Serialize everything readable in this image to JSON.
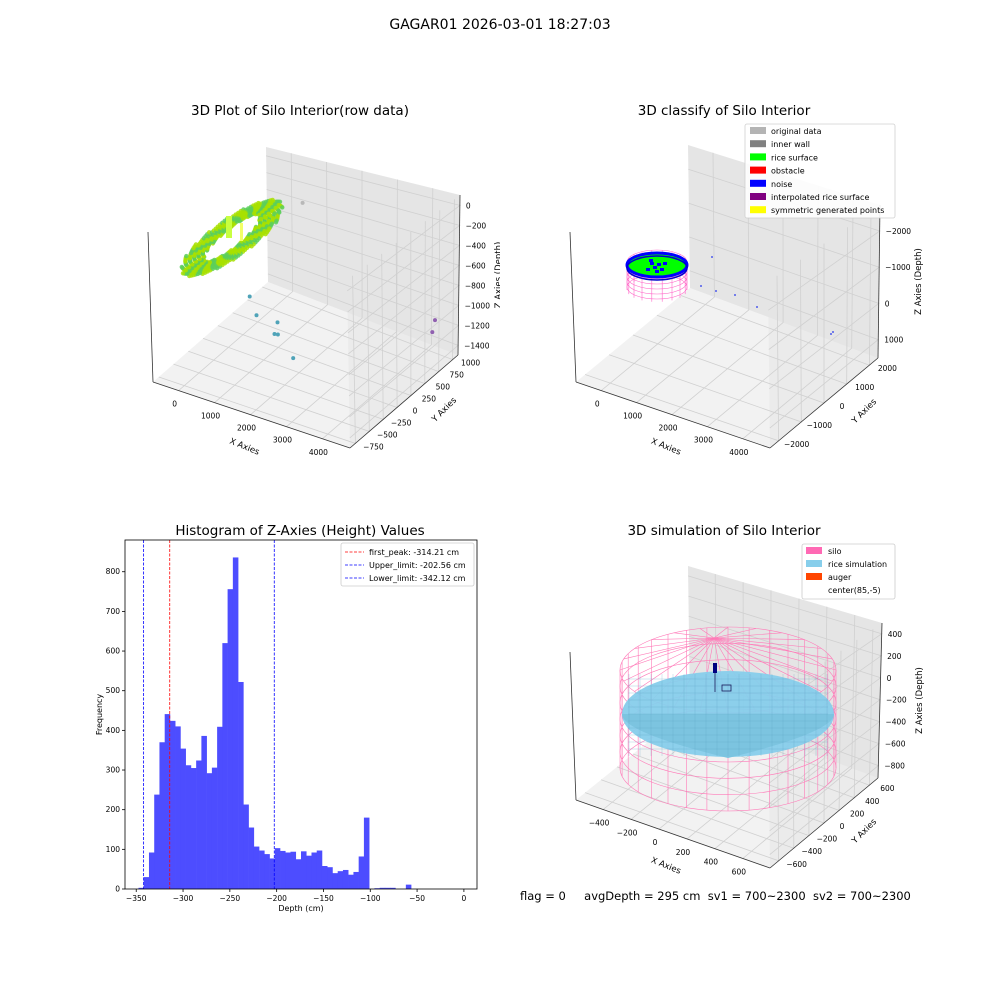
{
  "figure_title": "GAGAR01 2026-03-01 18:27:03",
  "footer": {
    "flag": "flag = 0",
    "avg_depth": "avgDepth = 295 cm",
    "sv1": "sv1 = 700~2300",
    "sv2": "sv2 = 700~2300"
  },
  "chart_data": [
    {
      "id": "raw",
      "type": "scatter",
      "title": "3D Plot of Silo Interior(row data)",
      "xlabel": "X Axies",
      "ylabel": "Y Axies",
      "zlabel": "Z Axies (Depth)",
      "x_ticks": [
        "0",
        "1000",
        "2000",
        "3000",
        "4000"
      ],
      "y_ticks": [
        "−750",
        "−500",
        "−250",
        "0",
        "250",
        "500",
        "750",
        "1000"
      ],
      "z_ticks": [
        "0",
        "−200",
        "−400",
        "−600",
        "−800",
        "−1000",
        "−1200",
        "−1400"
      ],
      "xlim": [
        -400,
        4300
      ],
      "ylim": [
        -800,
        1100
      ],
      "zlim": [
        -1500,
        100
      ],
      "colors": {
        "surface_a": "#a8e000",
        "surface_b": "#5ccf5a",
        "stray": "#4fa3b8",
        "far": "#9060b0"
      },
      "outliers": [
        {
          "x": 1400,
          "y": 500,
          "z": -50
        },
        {
          "x": 1100,
          "y": -200,
          "z": -700
        },
        {
          "x": 1400,
          "y": -300,
          "z": -800
        },
        {
          "x": 1900,
          "y": -300,
          "z": -800
        },
        {
          "x": 1850,
          "y": -320,
          "z": -920
        },
        {
          "x": 1900,
          "y": -300,
          "z": -930
        },
        {
          "x": 2400,
          "y": -400,
          "z": -1050
        },
        {
          "x": 3900,
          "y": 900,
          "z": -1150
        },
        {
          "x": 3900,
          "y": 850,
          "z": -1250
        }
      ]
    },
    {
      "id": "classify",
      "type": "scatter",
      "title": "3D classify of Silo Interior",
      "xlabel": "X Axies",
      "ylabel": "Y Axies",
      "zlabel": "Z Axies (Depth)",
      "x_ticks": [
        "0",
        "1000",
        "2000",
        "3000",
        "4000"
      ],
      "y_ticks": [
        "−2000",
        "−1000",
        "0",
        "1000",
        "2000"
      ],
      "z_ticks": [
        "1000",
        "0",
        "−1000",
        "−2000"
      ],
      "legend_position": "upper right",
      "legend": [
        {
          "label": "original data",
          "color": "#b4b4b4"
        },
        {
          "label": "inner wall",
          "color": "#808080"
        },
        {
          "label": "rice surface",
          "color": "#00ff00"
        },
        {
          "label": "obstacle",
          "color": "#ff0000"
        },
        {
          "label": "noise",
          "color": "#0000ff"
        },
        {
          "label": "interpolated rice surface",
          "color": "#800080"
        },
        {
          "label": "symmetric generated points",
          "color": "#ffff00"
        }
      ]
    },
    {
      "id": "histogram",
      "type": "bar",
      "title": "Histogram of Z-Axies (Height) Values",
      "xlabel": "Depth (cm)",
      "ylabel": "Frequency",
      "xlim": [
        -362,
        14
      ],
      "ylim": [
        0,
        880
      ],
      "x_ticks": [
        -350,
        -300,
        -250,
        -200,
        -150,
        -100,
        -50,
        0
      ],
      "y_ticks": [
        0,
        100,
        200,
        300,
        400,
        500,
        600,
        700,
        800
      ],
      "bar_color": "#4d4dff",
      "bin_width": 5.6,
      "bin_start": -347.6,
      "counts": [
        3,
        30,
        92,
        238,
        370,
        441,
        424,
        410,
        354,
        312,
        305,
        324,
        386,
        292,
        306,
        409,
        620,
        756,
        836,
        522,
        213,
        155,
        107,
        97,
        88,
        77,
        103,
        96,
        92,
        94,
        75,
        95,
        84,
        92,
        97,
        58,
        55,
        40,
        45,
        48,
        36,
        43,
        82,
        180,
        0,
        2,
        3,
        3,
        3,
        0,
        0,
        11
      ],
      "lines": [
        {
          "name": "first_peak: -314.21 cm",
          "value": -314.21,
          "color": "#ff0000"
        },
        {
          "name": "Upper_limit: -202.56 cm",
          "value": -202.56,
          "color": "#0000ff"
        },
        {
          "name": "Lower_limit: -342.12 cm",
          "value": -342.12,
          "color": "#0000ff"
        }
      ],
      "legend_position": "upper right"
    },
    {
      "id": "simulation",
      "type": "scatter",
      "title": "3D simulation of Silo Interior",
      "xlabel": "X Axies",
      "ylabel": "Y Axies",
      "zlabel": "Z Axies (Depth)",
      "x_ticks": [
        "−400",
        "−200",
        "0",
        "200",
        "400",
        "600"
      ],
      "y_ticks": [
        "−600",
        "−400",
        "−200",
        "0",
        "200",
        "400",
        "600"
      ],
      "z_ticks": [
        "400",
        "200",
        "0",
        "−200",
        "−400",
        "−600",
        "−800"
      ],
      "legend_position": "upper right",
      "legend": [
        {
          "label": "silo",
          "color": "#ff69b4"
        },
        {
          "label": "rice simulation",
          "color": "#87ceeb"
        },
        {
          "label": "auger",
          "color": "#ff4500"
        },
        {
          "label": "center(85,-5)",
          "color": "#ffffff"
        }
      ]
    }
  ]
}
